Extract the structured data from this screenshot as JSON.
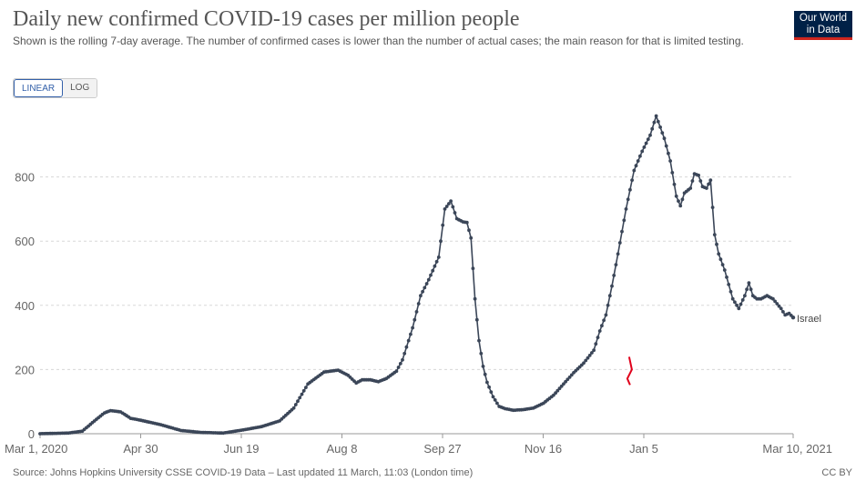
{
  "header": {
    "title": "Daily new confirmed COVID-19 cases per million people",
    "subtitle": "Shown is the rolling 7-day average. The number of confirmed cases is lower than the number of actual cases; the main reason for that is limited testing.",
    "logo_line1": "Our World",
    "logo_line2": "in Data"
  },
  "controls": {
    "linear_label": "LINEAR",
    "log_label": "LOG"
  },
  "footer": {
    "source": "Source: Johns Hopkins University CSSE COVID-19 Data – Last updated 11 March, 11:03 (London time)",
    "license": "CC BY"
  },
  "colors": {
    "line": "#3b4658",
    "marker_red": "#e0001b",
    "grid": "#d8d8d8",
    "logo_bg": "#002147",
    "logo_bar": "#ce261e",
    "toggle_active": "#3360a9"
  },
  "chart_data": {
    "type": "line",
    "y_scale": "linear",
    "ylim": [
      0,
      1000
    ],
    "yticks": [
      "0",
      "200",
      "400",
      "600",
      "800"
    ],
    "xticks": [
      "Mar 1, 2020",
      "Apr 30",
      "Jun 19",
      "Aug 8",
      "Sep 27",
      "Nov 16",
      "Jan 5",
      "Mar 10, 2021"
    ],
    "grid": true,
    "series": [
      {
        "name": "Israel",
        "x": [
          "2020-03-01",
          "2020-03-08",
          "2020-03-15",
          "2020-03-22",
          "2020-03-29",
          "2020-04-02",
          "2020-04-05",
          "2020-04-10",
          "2020-04-15",
          "2020-04-20",
          "2020-04-30",
          "2020-05-10",
          "2020-05-20",
          "2020-05-31",
          "2020-06-10",
          "2020-06-19",
          "2020-06-28",
          "2020-07-05",
          "2020-07-12",
          "2020-07-20",
          "2020-07-27",
          "2020-08-01",
          "2020-08-05",
          "2020-08-08",
          "2020-08-12",
          "2020-08-16",
          "2020-08-20",
          "2020-08-25",
          "2020-08-28",
          "2020-09-02",
          "2020-09-06",
          "2020-09-10",
          "2020-09-15",
          "2020-09-18",
          "2020-09-21",
          "2020-09-24",
          "2020-09-27",
          "2020-09-29",
          "2020-10-01",
          "2020-10-03",
          "2020-10-05",
          "2020-10-07",
          "2020-10-09",
          "2020-10-12",
          "2020-10-15",
          "2020-10-18",
          "2020-10-22",
          "2020-10-27",
          "2020-11-01",
          "2020-11-06",
          "2020-11-11",
          "2020-11-16",
          "2020-11-21",
          "2020-11-26",
          "2020-12-01",
          "2020-12-04",
          "2020-12-07",
          "2020-12-10",
          "2020-12-13",
          "2020-12-17",
          "2020-12-21",
          "2020-12-25",
          "2020-12-29",
          "2021-01-01",
          "2021-01-05",
          "2021-01-08",
          "2021-01-11",
          "2021-01-13",
          "2021-01-15",
          "2021-01-18",
          "2021-01-20",
          "2021-01-22",
          "2021-01-24",
          "2021-01-26",
          "2021-01-28",
          "2021-01-30",
          "2021-02-01",
          "2021-02-04",
          "2021-02-08",
          "2021-02-11",
          "2021-02-14",
          "2021-02-16",
          "2021-02-18",
          "2021-02-20",
          "2021-02-22",
          "2021-02-25",
          "2021-02-28",
          "2021-03-02",
          "2021-03-04",
          "2021-03-06",
          "2021-03-08",
          "2021-03-10"
        ],
        "values": [
          0,
          1,
          2,
          8,
          45,
          65,
          72,
          68,
          48,
          42,
          28,
          10,
          4,
          2,
          12,
          22,
          40,
          80,
          155,
          192,
          198,
          182,
          158,
          168,
          168,
          162,
          172,
          195,
          230,
          330,
          430,
          480,
          550,
          700,
          725,
          670,
          660,
          658,
          610,
          420,
          290,
          210,
          160,
          115,
          85,
          78,
          73,
          75,
          80,
          95,
          120,
          155,
          190,
          220,
          260,
          320,
          370,
          460,
          560,
          700,
          820,
          880,
          930,
          990,
          920,
          850,
          740,
          710,
          750,
          765,
          810,
          805,
          770,
          765,
          790,
          620,
          560,
          510,
          420,
          390,
          430,
          470,
          430,
          420,
          420,
          430,
          420,
          405,
          390,
          370,
          375,
          362
        ]
      }
    ],
    "annotation_marker": {
      "x": "2020-12-19",
      "y": 200
    }
  }
}
